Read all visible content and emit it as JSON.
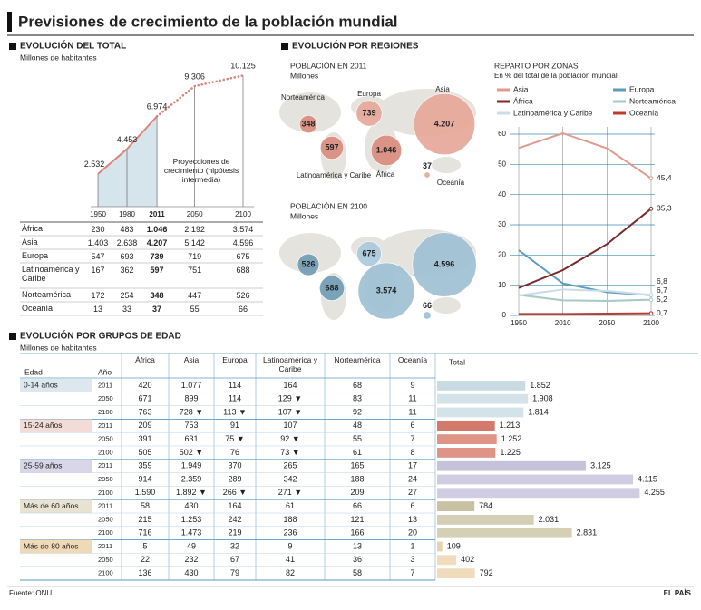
{
  "title": "Previsiones de crecimiento de la población mundial",
  "source": "Fuente: ONU.",
  "credit": "EL PAÍS",
  "chart_data": [
    {
      "type": "area",
      "section": "EVOLUCIÓN DEL TOTAL",
      "subtitle": "Millones de habitantes",
      "x": [
        1950,
        1980,
        2011,
        2050,
        2100
      ],
      "values": [
        2532,
        4453,
        6974,
        9306,
        10125
      ],
      "value_labels": [
        "2.532",
        "4.453",
        "6.974",
        "9.306",
        "10.125"
      ],
      "annotation": "Proyecciones de crecimiento (hipótesis intermedia)",
      "projection_start": 2011,
      "line_color": "#d9867a",
      "fill_color": "#d6e4ec",
      "xlim": [
        1950,
        2100
      ],
      "xticks": [
        1950,
        1980,
        2011,
        2050,
        2100
      ],
      "ylim": [
        0,
        10500
      ]
    },
    {
      "type": "bubble",
      "section": "EVOLUCIÓN POR REGIONES",
      "title": "POBLACIÓN EN 2011",
      "subtitle": "Millones",
      "categories": [
        "Norteamérica",
        "Europa",
        "Asia",
        "Latinoamérica y Caribe",
        "África",
        "Oceanía"
      ],
      "values": [
        348,
        739,
        4207,
        597,
        1046,
        37
      ],
      "value_labels": [
        "348",
        "739",
        "4.207",
        "597",
        "1.046",
        "37"
      ],
      "colors": [
        "#d98a7c",
        "#e6a597",
        "#e6a597",
        "#d98a7c",
        "#d98a7c",
        "#e6a597"
      ]
    },
    {
      "type": "bubble",
      "title": "POBLACIÓN EN 2100",
      "subtitle": "Millones",
      "values": [
        526,
        675,
        4596,
        688,
        3574,
        66
      ],
      "value_labels": [
        "526",
        "675",
        "4.596",
        "688",
        "3.574",
        "66"
      ],
      "colors": [
        "#6f9bb2",
        "#a9c9db",
        "#9cc0d4",
        "#6f9bb2",
        "#9cc0d4",
        "#9cc0d4"
      ]
    },
    {
      "type": "line",
      "title": "REPARTO POR ZONAS",
      "subtitle": "En % del total de la población mundial",
      "categories": [
        "1950",
        "2010",
        "2050",
        "2100"
      ],
      "series": [
        {
          "name": "Asia",
          "color": "#e29a8d",
          "values": [
            55.4,
            60.3,
            55.3,
            45.4
          ],
          "value_labels": [
            null,
            null,
            null,
            "45,4"
          ]
        },
        {
          "name": "Europa",
          "color": "#5d9cc0",
          "values": [
            21.6,
            10.6,
            7.7,
            6.7
          ],
          "value_labels": [
            null,
            null,
            null,
            "6,7"
          ]
        },
        {
          "name": "África",
          "color": "#7b2a2a",
          "values": [
            9.1,
            15.0,
            23.6,
            35.3
          ],
          "value_labels": [
            null,
            null,
            null,
            "35,3"
          ]
        },
        {
          "name": "Norteamérica",
          "color": "#a4c9c6",
          "values": [
            6.8,
            5.0,
            4.8,
            5.2
          ],
          "value_labels": [
            null,
            null,
            null,
            "5,2"
          ]
        },
        {
          "name": "Latinoamérica y Caribe",
          "color": "#c8dde8",
          "values": [
            6.6,
            8.6,
            8.1,
            6.8
          ],
          "value_labels": [
            null,
            null,
            null,
            "6,8"
          ]
        },
        {
          "name": "Oceanía",
          "color": "#c0392b",
          "values": [
            0.5,
            0.5,
            0.6,
            0.7
          ],
          "value_labels": [
            null,
            null,
            null,
            "0,7"
          ]
        }
      ],
      "ylim": [
        0,
        60
      ],
      "yticks": [
        0,
        10,
        20,
        30,
        40,
        50,
        60
      ],
      "grid": true
    },
    {
      "type": "bar",
      "orientation": "horizontal",
      "values": [
        1852,
        1908,
        1814,
        1213,
        1252,
        1225,
        3125,
        4115,
        4255,
        784,
        2031,
        2831,
        109,
        402,
        792
      ],
      "value_labels": [
        "1.852",
        "1.908",
        "1.814",
        "1.213",
        "1.252",
        "1.225",
        "3.125",
        "4.115",
        "4.255",
        "784",
        "2.031",
        "2.831",
        "109",
        "402",
        "792"
      ],
      "colors": [
        "#c9dae3",
        "#d4e2ea",
        "#d4e2ea",
        "#d4786b",
        "#df9486",
        "#df9486",
        "#c6c2da",
        "#d0cde2",
        "#d0cde2",
        "#c9c1a4",
        "#d5cfb6",
        "#d5cfb6",
        "#ebd2a8",
        "#f0dcbb",
        "#f0dcbb"
      ],
      "xlim": [
        0,
        4400
      ]
    }
  ],
  "regions_table": {
    "rows": [
      [
        "África",
        "230",
        "483",
        "1.046",
        "2.192",
        "3.574"
      ],
      [
        "Asia",
        "1.403",
        "2.638",
        "4.207",
        "5.142",
        "4.596"
      ],
      [
        "Europa",
        "547",
        "693",
        "739",
        "719",
        "675"
      ],
      [
        "Latinoamérica y Caribe",
        "167",
        "362",
        "597",
        "751",
        "688"
      ],
      [
        "Norteamérica",
        "172",
        "254",
        "348",
        "447",
        "526"
      ],
      [
        "Oceanía",
        "13",
        "33",
        "37",
        "55",
        "66"
      ]
    ]
  },
  "age_table": {
    "section": "EVOLUCIÓN POR GRUPOS DE EDAD",
    "subtitle": "Millones de habitantes",
    "columns": [
      "Edad",
      "Año",
      "África",
      "Asia",
      "Europa",
      "Latinoamérica y Caribe",
      "Norteamérica",
      "Oceanía",
      "Total"
    ],
    "groups": [
      {
        "label": "0-14 años",
        "color": "#dde8ee",
        "rows": [
          [
            "2011",
            "420",
            "1.077",
            "114",
            "164",
            "68",
            "9"
          ],
          [
            "2050",
            "671",
            "899",
            "114",
            "129 ▼",
            "83",
            "11"
          ],
          [
            "2100",
            "763",
            "728 ▼",
            "113 ▼",
            "107 ▼",
            "92",
            "11"
          ]
        ]
      },
      {
        "label": "15-24 años",
        "color": "#f3dcd7",
        "rows": [
          [
            "2011",
            "209",
            "753",
            "91",
            "107",
            "48",
            "6"
          ],
          [
            "2050",
            "391",
            "631",
            "75 ▼",
            "92 ▼",
            "55",
            "7"
          ],
          [
            "2100",
            "505",
            "502 ▼",
            "76",
            "73 ▼",
            "61",
            "8"
          ]
        ]
      },
      {
        "label": "25-59 años",
        "color": "#d9d6e8",
        "rows": [
          [
            "2011",
            "359",
            "1.949",
            "370",
            "265",
            "165",
            "17"
          ],
          [
            "2050",
            "914",
            "2.359",
            "289",
            "342",
            "188",
            "24"
          ],
          [
            "2100",
            "1.590",
            "1.892 ▼",
            "266 ▼",
            "271 ▼",
            "209",
            "27"
          ]
        ]
      },
      {
        "label": "Más de 60 años",
        "color": "#e7e2d2",
        "rows": [
          [
            "2011",
            "58",
            "430",
            "164",
            "61",
            "66",
            "6"
          ],
          [
            "2050",
            "215",
            "1.253",
            "242",
            "188",
            "121",
            "13"
          ],
          [
            "2100",
            "716",
            "1.473",
            "219",
            "236",
            "166",
            "20"
          ]
        ]
      },
      {
        "label": "Más de 80 años",
        "color": "#efd9b6",
        "rows": [
          [
            "2011",
            "5",
            "49",
            "32",
            "9",
            "13",
            "1"
          ],
          [
            "2050",
            "22",
            "232",
            "67",
            "41",
            "36",
            "3"
          ],
          [
            "2100",
            "136",
            "430",
            "79",
            "82",
            "58",
            "7"
          ]
        ]
      }
    ]
  }
}
